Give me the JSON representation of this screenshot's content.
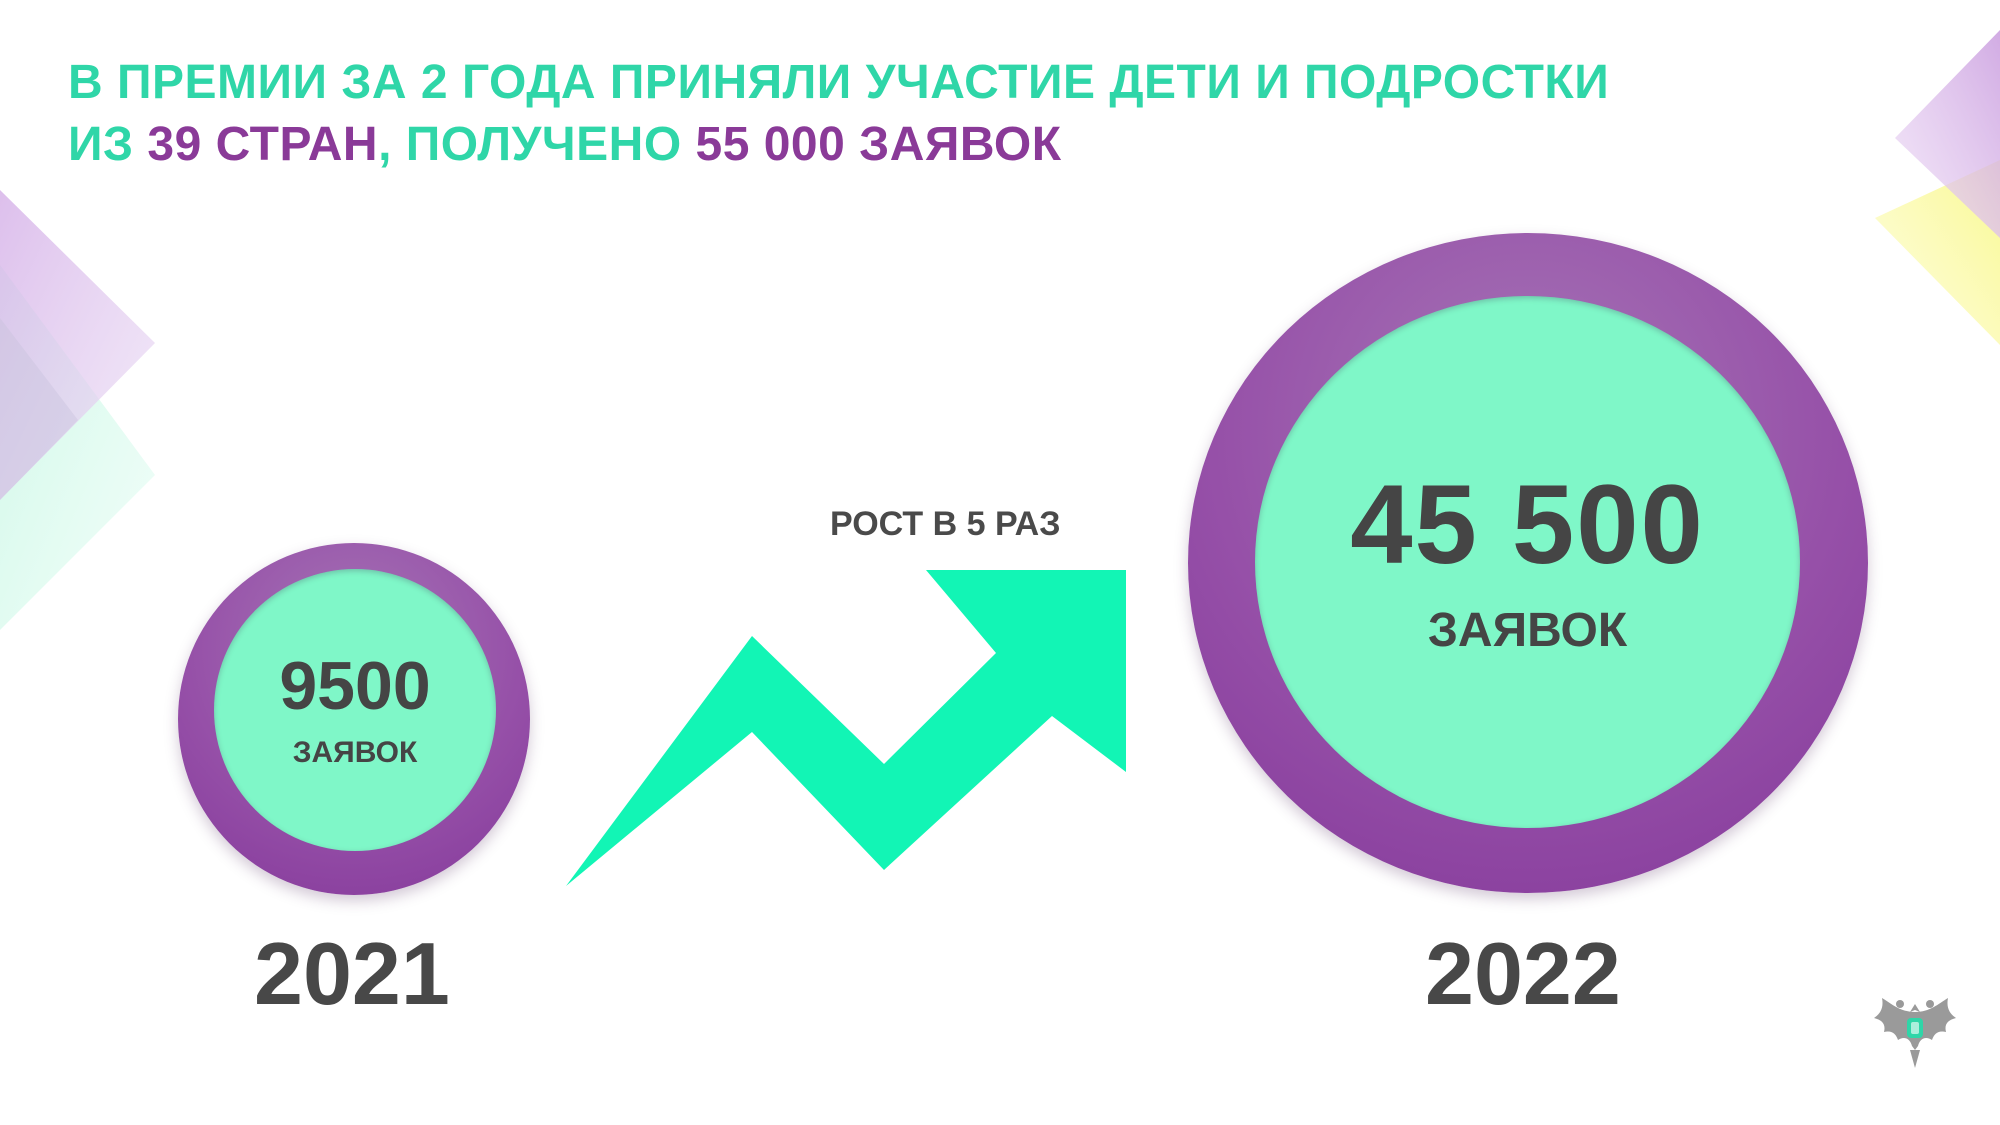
{
  "title": {
    "line1": "В ПРЕМИИ ЗА 2 ГОДА ПРИНЯЛИ УЧАСТИЕ ДЕТИ И ПОДРОСТКИ",
    "line2_prefix": "ИЗ",
    "line2_countries": "39 СТРАН",
    "line2_middle": ", ПОЛУЧЕНО",
    "line2_applications": "55 000 ЗАЯВОК"
  },
  "stats": [
    {
      "value": "9500",
      "unit": "ЗАЯВОК",
      "year": "2021"
    },
    {
      "value": "45 500",
      "unit": "ЗАЯВОК",
      "year": "2022"
    }
  ],
  "growth_label": "РОСТ В 5 РАЗ",
  "icons": {
    "arrow": "growth-arrow-icon",
    "emblem": "double-headed-eagle-emblem-icon"
  },
  "colors": {
    "green_accent": "#2fd6a8",
    "purple_accent": "#8a3a98",
    "circle_inner": "#7ff7c8",
    "arrow": "#12f5b5",
    "text_dark": "#454545"
  }
}
